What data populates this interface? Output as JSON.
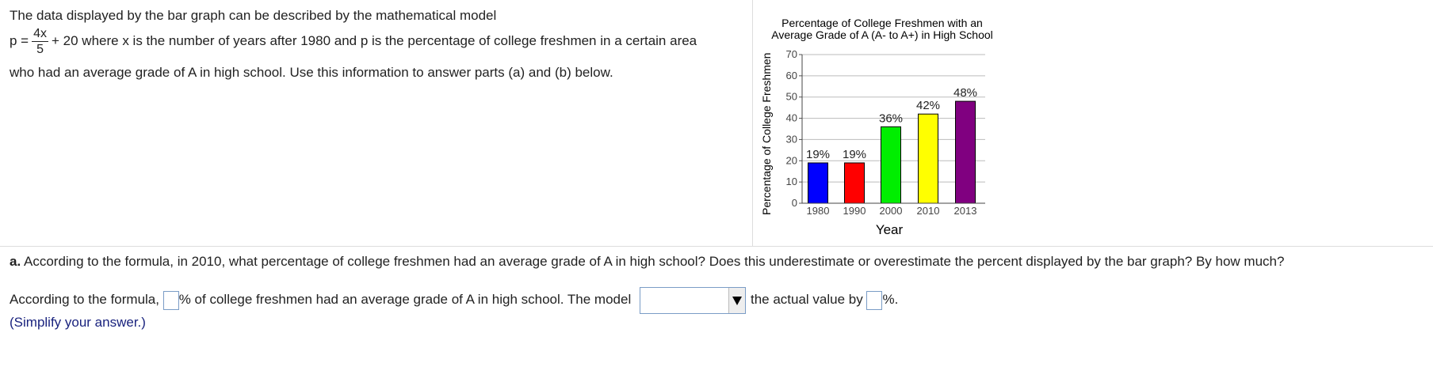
{
  "problem": {
    "intro": "The data displayed by the bar graph can be described by the mathematical model",
    "formula_lhs": "p =",
    "formula_numerator": "4x",
    "formula_denominator": "5",
    "formula_rest": "+ 20 where x is the number of years after 1980 and p is the percentage of college freshmen in a certain area",
    "intro_end": "who had an average grade of A in high school. Use this information to answer parts (a) and (b) below."
  },
  "chart_data": {
    "type": "bar",
    "title": [
      "Percentage of College Freshmen with an",
      "Average Grade of A (A- to A+) in High School"
    ],
    "y_label": "Percentage of College Freshmen",
    "x_label": "Year",
    "categories": [
      "1980",
      "1990",
      "2000",
      "2010",
      "2013"
    ],
    "values": [
      19,
      19,
      36,
      42,
      48
    ],
    "value_labels": [
      "19%",
      "19%",
      "36%",
      "42%",
      "48%"
    ],
    "colors": [
      "#0000ff",
      "#ff0000",
      "#00ee00",
      "#ffff00",
      "#800080"
    ],
    "ylim": [
      0,
      70
    ],
    "yticks": [
      0,
      10,
      20,
      30,
      40,
      50,
      60,
      70
    ],
    "grid": true
  },
  "question": {
    "part": "a.",
    "text": "According to the formula, in 2010, what percentage of college freshmen had an average grade of A in high school?  Does this underestimate or overestimate the percent displayed by the bar graph? By how much?"
  },
  "answer": {
    "lead": "According to the formula,",
    "middle": "% of college freshmen had an average grade of A in high school. The model",
    "after_select": "the actual value by",
    "end": "%.",
    "hint": "(Simplify your answer.)"
  }
}
